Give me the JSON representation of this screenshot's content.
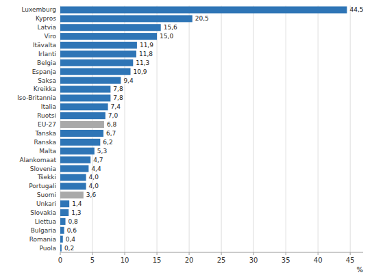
{
  "chart_data": {
    "type": "bar",
    "orientation": "horizontal",
    "categories": [
      "Luxemburg",
      "Kypros",
      "Latvia",
      "Viro",
      "Itävalta",
      "Irlanti",
      "Belgia",
      "Espanja",
      "Saksa",
      "Kreikka",
      "Iso-Britannia",
      "Italia",
      "Ruotsi",
      "EU-27",
      "Tanska",
      "Ranska",
      "Malta",
      "Alankomaat",
      "Slovenia",
      "Tšekki",
      "Portugali",
      "Suomi",
      "Unkari",
      "Slovakia",
      "Liettua",
      "Bulgaria",
      "Romania",
      "Puola"
    ],
    "values": [
      44.5,
      20.5,
      15.6,
      15.0,
      11.9,
      11.8,
      11.3,
      10.9,
      9.4,
      7.8,
      7.8,
      7.4,
      7.0,
      6.8,
      6.7,
      6.2,
      5.3,
      4.7,
      4.4,
      4.0,
      4.0,
      3.6,
      1.4,
      1.3,
      0.8,
      0.6,
      0.4,
      0.2
    ],
    "value_labels": [
      "44,5",
      "20,5",
      "15,6",
      "15,0",
      "11,9",
      "11,8",
      "11,3",
      "10,9",
      "9,4",
      "7,8",
      "7,8",
      "7,4",
      "7,0",
      "6,8",
      "6,7",
      "6,2",
      "5,3",
      "4,7",
      "4,4",
      "4,0",
      "4,0",
      "3,6",
      "1,4",
      "1,3",
      "0,8",
      "0,6",
      "0,4",
      "0,2"
    ],
    "colors": [
      "#2E75B6",
      "#2E75B6",
      "#2E75B6",
      "#2E75B6",
      "#2E75B6",
      "#2E75B6",
      "#2E75B6",
      "#2E75B6",
      "#2E75B6",
      "#2E75B6",
      "#2E75B6",
      "#2E75B6",
      "#2E75B6",
      "#A9A9A9",
      "#2E75B6",
      "#2E75B6",
      "#2E75B6",
      "#2E75B6",
      "#2E75B6",
      "#2E75B6",
      "#2E75B6",
      "#A9A9A9",
      "#2E75B6",
      "#2E75B6",
      "#2E75B6",
      "#2E75B6",
      "#2E75B6",
      "#2E75B6"
    ],
    "xlim": [
      0,
      47
    ],
    "xticks": [
      0,
      5,
      10,
      15,
      20,
      25,
      30,
      35,
      40,
      45
    ],
    "xlabel": "%",
    "grid": true,
    "data_labels": true
  }
}
